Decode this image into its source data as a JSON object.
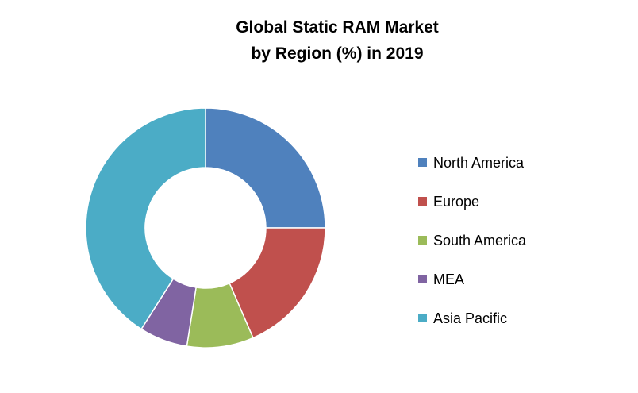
{
  "chart_data": {
    "type": "pie",
    "variant": "donut",
    "title_lines": [
      "Global Static RAM  Market",
      "by Region (%) in 2019"
    ],
    "categories": [
      "North America",
      "Europe",
      "South America",
      "MEA",
      "Asia Pacific"
    ],
    "values": [
      25,
      18.5,
      9,
      6.5,
      41
    ],
    "unit": "%",
    "colors": [
      "#4F81BD",
      "#C0504D",
      "#9BBB59",
      "#8064A2",
      "#4BACC6"
    ],
    "legend_position": "right",
    "start_angle": "12 o'clock",
    "direction": "clockwise"
  }
}
